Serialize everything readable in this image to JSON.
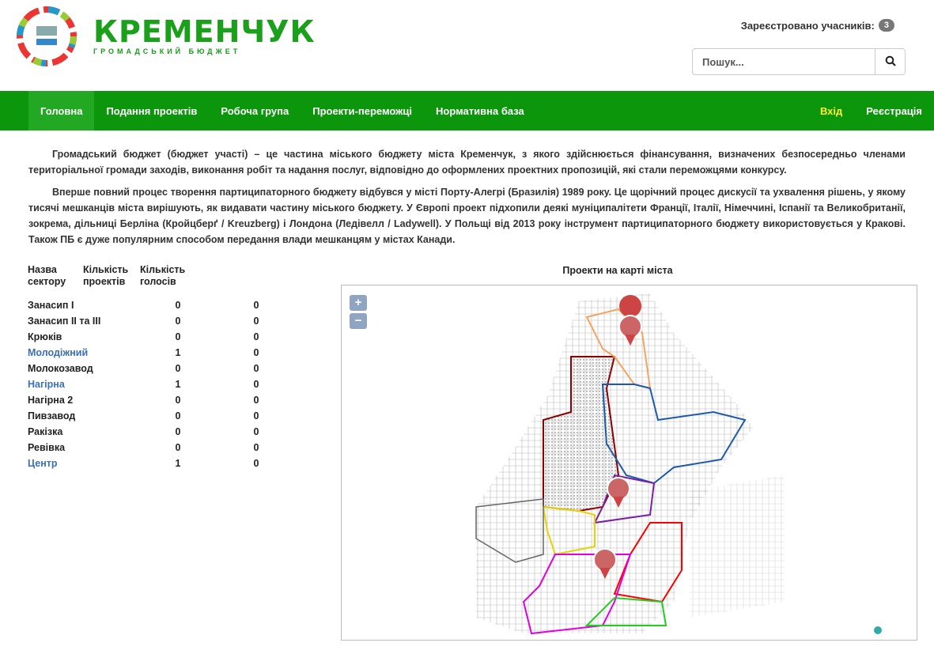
{
  "header": {
    "logo_title": "КРЕМЕНЧУК",
    "logo_subtitle": "ГРОМАДСЬКИЙ БЮДЖЕТ",
    "registered_label": "Зареєстровано учасників:",
    "registered_count": "3",
    "search_placeholder": "Пошук..."
  },
  "nav": {
    "items": [
      {
        "label": "Головна",
        "active": true
      },
      {
        "label": "Подання проектів"
      },
      {
        "label": "Робоча група"
      },
      {
        "label": "Проекти-переможці"
      },
      {
        "label": "Нормативна база"
      }
    ],
    "login": "Вхід",
    "register": "Реєстрація"
  },
  "intro": {
    "p1": "Громадський бюджет (бюджет участі) – це частина міського бюджету міста Кременчук, з якого здійснюється фінансування, визначених безпосередньо членами територіальної громади заходів, виконання робіт та надання послуг, відповідно до оформлених проектних пропозицій, які стали переможцями конкурсу.",
    "p2": "Вперше повний процес творення партиципаторного бюджету відбувся у місті Порту-Алегрі (Бразилія) 1989 року. Це щорічний процес дискусії та ухвалення рішень, у якому тисячі мешканців міста вирішують, як видавати частину міського бюджету. У Європі проект підхопили деякі муніципалітети Франції, Італії, Німеччині, Іспанії та Великобританії, зокрема, дільниці Берліна (Кройцберґ / Kreuzberg) і Лондона (Ледівелл / Ladywell). У Польщі від 2013 року інструмент партиципаторного бюджету використовується у Кракові. Також ПБ є дуже популярним способом передання влади мешканцям у містах Канади."
  },
  "table": {
    "headers": [
      "Назва сектору",
      "Кількість проектів",
      "Кількість голосів"
    ],
    "rows": [
      {
        "name": "Занасип І",
        "projects": "0",
        "votes": "0",
        "link": false
      },
      {
        "name": "Занасип ІІ та ІІІ",
        "projects": "0",
        "votes": "0",
        "link": false
      },
      {
        "name": "Крюків",
        "projects": "0",
        "votes": "0",
        "link": false
      },
      {
        "name": "Молодіжний",
        "projects": "1",
        "votes": "0",
        "link": true
      },
      {
        "name": "Молокозавод",
        "projects": "0",
        "votes": "0",
        "link": false
      },
      {
        "name": "Нагірна",
        "projects": "1",
        "votes": "0",
        "link": true
      },
      {
        "name": "Нагірна 2",
        "projects": "0",
        "votes": "0",
        "link": false
      },
      {
        "name": "Пивзавод",
        "projects": "0",
        "votes": "0",
        "link": false
      },
      {
        "name": "Ракізка",
        "projects": "0",
        "votes": "0",
        "link": false
      },
      {
        "name": "Ревівка",
        "projects": "0",
        "votes": "0",
        "link": false
      },
      {
        "name": "Центр",
        "projects": "1",
        "votes": "0",
        "link": true
      }
    ]
  },
  "map": {
    "title": "Проекти на карті міста",
    "zoom_in": "+",
    "zoom_out": "−"
  },
  "colors": {
    "nav": "#0c960c",
    "login": "#ffee33",
    "link": "#3a70b5"
  }
}
